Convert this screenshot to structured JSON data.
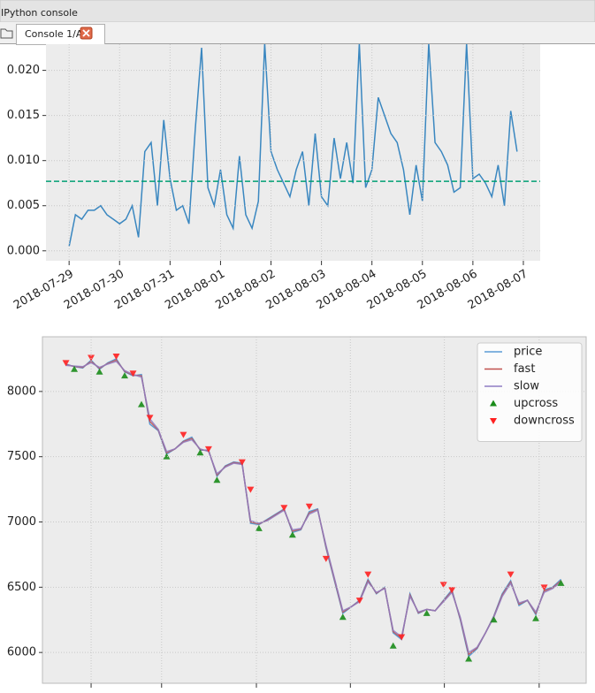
{
  "window": {
    "title": "IPython console",
    "tab": "Console 1/A"
  },
  "chart_data": [
    {
      "type": "line",
      "x": [
        "2018-07-29T00:00",
        "2018-07-29T03:00",
        "2018-07-29T06:00",
        "2018-07-29T09:00",
        "2018-07-29T12:00",
        "2018-07-29T15:00",
        "2018-07-29T18:00",
        "2018-07-29T21:00",
        "2018-07-30T00:00",
        "2018-07-30T03:00",
        "2018-07-30T06:00",
        "2018-07-30T09:00",
        "2018-07-30T12:00",
        "2018-07-30T15:00",
        "2018-07-30T18:00",
        "2018-07-30T21:00",
        "2018-07-31T00:00",
        "2018-07-31T03:00",
        "2018-07-31T06:00",
        "2018-07-31T09:00",
        "2018-07-31T12:00",
        "2018-07-31T15:00",
        "2018-07-31T18:00",
        "2018-07-31T21:00",
        "2018-08-01T00:00",
        "2018-08-01T03:00",
        "2018-08-01T06:00",
        "2018-08-01T09:00",
        "2018-08-01T12:00",
        "2018-08-01T15:00",
        "2018-08-01T18:00",
        "2018-08-01T21:00",
        "2018-08-02T00:00",
        "2018-08-02T03:00",
        "2018-08-02T06:00",
        "2018-08-02T09:00",
        "2018-08-02T12:00",
        "2018-08-02T15:00",
        "2018-08-02T18:00",
        "2018-08-02T21:00",
        "2018-08-03T00:00",
        "2018-08-03T03:00",
        "2018-08-03T06:00",
        "2018-08-03T09:00",
        "2018-08-03T12:00",
        "2018-08-03T15:00",
        "2018-08-03T18:00",
        "2018-08-03T21:00",
        "2018-08-04T00:00",
        "2018-08-04T03:00",
        "2018-08-04T06:00",
        "2018-08-04T09:00",
        "2018-08-04T12:00",
        "2018-08-04T15:00",
        "2018-08-04T18:00",
        "2018-08-04T21:00",
        "2018-08-05T00:00",
        "2018-08-05T03:00",
        "2018-08-05T06:00",
        "2018-08-05T09:00",
        "2018-08-05T12:00",
        "2018-08-05T15:00",
        "2018-08-05T18:00",
        "2018-08-05T21:00",
        "2018-08-06T00:00",
        "2018-08-06T03:00",
        "2018-08-06T06:00",
        "2018-08-06T09:00",
        "2018-08-06T12:00",
        "2018-08-06T15:00",
        "2018-08-06T18:00",
        "2018-08-06T21:00"
      ],
      "series": [
        {
          "color": "#3a87c0",
          "values": [
            0.0005,
            0.004,
            0.0035,
            0.0045,
            0.0045,
            0.005,
            0.004,
            0.0035,
            0.003,
            0.0035,
            0.005,
            0.0015,
            0.011,
            0.012,
            0.005,
            0.0145,
            0.008,
            0.0045,
            0.005,
            0.003,
            0.0135,
            0.0225,
            0.007,
            0.005,
            0.009,
            0.004,
            0.0025,
            0.0105,
            0.004,
            0.0025,
            0.0055,
            0.023,
            0.011,
            0.009,
            0.0075,
            0.006,
            0.009,
            0.011,
            0.005,
            0.013,
            0.006,
            0.005,
            0.0125,
            0.008,
            0.012,
            0.0075,
            0.023,
            0.007,
            0.009,
            0.017,
            0.015,
            0.013,
            0.012,
            0.009,
            0.004,
            0.0095,
            0.0055,
            0.023,
            0.012,
            0.011,
            0.0095,
            0.0065,
            0.007,
            0.023,
            0.008,
            0.0085,
            0.0075,
            0.006,
            0.0095,
            0.005,
            0.0155,
            0.011
          ]
        }
      ],
      "hlines": [
        {
          "value": 0.0077,
          "color": "#009e73"
        }
      ],
      "xlim": [
        "2018-07-28T13:00",
        "2018-08-07T08:00"
      ],
      "xticks": [
        "2018-07-29",
        "2018-07-30",
        "2018-07-31",
        "2018-08-01",
        "2018-08-02",
        "2018-08-03",
        "2018-08-04",
        "2018-08-05",
        "2018-08-06",
        "2018-08-07"
      ],
      "ylim": [
        -0.0011,
        0.0229
      ],
      "yticks": [
        {
          "value": 0,
          "label": "0.000"
        },
        0.005,
        {
          "value": 0.01,
          "label": "0.010"
        },
        0.015,
        {
          "value": 0.02,
          "label": "0.020"
        }
      ],
      "grid": true
    },
    {
      "type": "line",
      "x": [
        0,
        1,
        2,
        3,
        4,
        5,
        6,
        7,
        8,
        9,
        10,
        11,
        12,
        13,
        14,
        15,
        16,
        17,
        18,
        19,
        20,
        21,
        22,
        23,
        24,
        25,
        26,
        27,
        28,
        29,
        30,
        31,
        32,
        33,
        34,
        35,
        36,
        37,
        38,
        39,
        40,
        41,
        42,
        43,
        44,
        45,
        46,
        47,
        48,
        49,
        50,
        51,
        52,
        53,
        54,
        55,
        56,
        57,
        58,
        59
      ],
      "series": [
        {
          "name": "price",
          "color": "#5b9bd5",
          "values": [
            8210,
            8190,
            8180,
            8240,
            8170,
            8220,
            8250,
            8150,
            8120,
            8130,
            7750,
            7700,
            7520,
            7560,
            7620,
            7650,
            7550,
            7550,
            7350,
            7430,
            7460,
            7450,
            6990,
            6980,
            7020,
            7060,
            7100,
            6920,
            6940,
            7080,
            7100,
            6800,
            6550,
            6300,
            6350,
            6400,
            6560,
            6450,
            6500,
            6150,
            6100,
            6450,
            6300,
            6330,
            6320,
            6400,
            6480,
            6250,
            5970,
            6030,
            6150,
            6280,
            6450,
            6550,
            6360,
            6400,
            6290,
            6480,
            6500,
            6560
          ]
        },
        {
          "name": "fast",
          "color": "#c0504d",
          "values": [
            8205,
            8192,
            8185,
            8230,
            8178,
            8215,
            8240,
            8155,
            8125,
            8120,
            7770,
            7705,
            7530,
            7560,
            7615,
            7640,
            7555,
            7545,
            7360,
            7425,
            7455,
            7445,
            7000,
            6985,
            7015,
            7055,
            7095,
            6930,
            6945,
            7070,
            7095,
            6810,
            6560,
            6310,
            6350,
            6395,
            6550,
            6455,
            6495,
            6160,
            6110,
            6440,
            6305,
            6330,
            6320,
            6395,
            6470,
            6260,
            5985,
            6035,
            6150,
            6275,
            6440,
            6540,
            6370,
            6400,
            6300,
            6470,
            6495,
            6550
          ]
        },
        {
          "name": "slow",
          "color": "#8e7cc3",
          "values": [
            8200,
            8195,
            8190,
            8220,
            8185,
            8210,
            8230,
            8160,
            8130,
            8110,
            7790,
            7710,
            7540,
            7560,
            7610,
            7630,
            7560,
            7540,
            7370,
            7420,
            7450,
            7440,
            7010,
            6990,
            7010,
            7050,
            7090,
            6940,
            6950,
            7060,
            7090,
            6820,
            6570,
            6320,
            6350,
            6390,
            6540,
            6460,
            6490,
            6170,
            6120,
            6430,
            6310,
            6330,
            6320,
            6390,
            6460,
            6270,
            6000,
            6040,
            6150,
            6270,
            6430,
            6530,
            6380,
            6400,
            6310,
            6460,
            6490,
            6540
          ]
        },
        {
          "name": "upcross",
          "color": "#1a8c1a",
          "marker": "up",
          "x": [
            1,
            4,
            7,
            9,
            12,
            16,
            18,
            23,
            27,
            33,
            39,
            43,
            48,
            51,
            56,
            59
          ],
          "values": [
            8170,
            8150,
            8120,
            7900,
            7500,
            7530,
            7320,
            6950,
            6900,
            6270,
            6050,
            6300,
            5950,
            6250,
            6260,
            6530
          ]
        },
        {
          "name": "downcross",
          "color": "#ff2020",
          "marker": "down",
          "x": [
            0,
            3,
            6,
            8,
            10,
            14,
            17,
            21,
            22,
            26,
            29,
            31,
            35,
            36,
            40,
            45,
            46,
            53,
            57
          ],
          "values": [
            8220,
            8260,
            8270,
            8140,
            7800,
            7670,
            7560,
            7460,
            7250,
            7110,
            7120,
            6720,
            6400,
            6600,
            6120,
            6520,
            6480,
            6600,
            6500
          ]
        }
      ],
      "xlim": [
        -2.8,
        62
      ],
      "xticks": [
        3,
        11.4,
        22.7,
        33.9,
        45.1,
        56.4
      ],
      "ylim": [
        5764,
        8419
      ],
      "yticks": [
        6000,
        6500,
        7000,
        7500,
        8000
      ],
      "grid": true,
      "legend": "upper right"
    }
  ]
}
